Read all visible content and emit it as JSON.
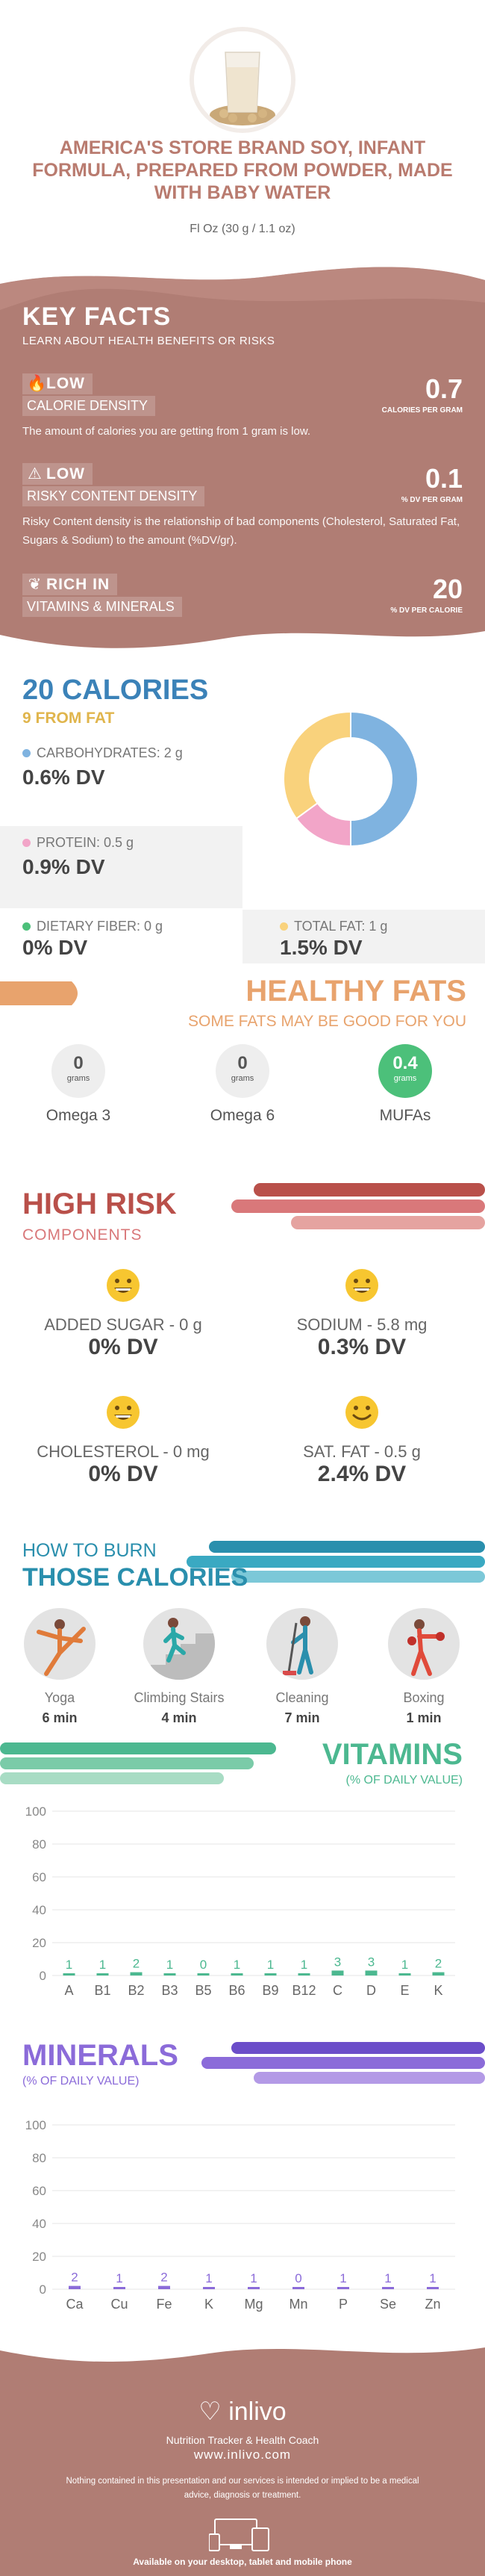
{
  "header": {
    "title": "AMERICA'S STORE BRAND SOY, INFANT FORMULA, PREPARED FROM POWDER, MADE WITH BABY WATER",
    "serving": "Fl Oz (30 g / 1.1 oz)"
  },
  "key_facts": {
    "title": "KEY FACTS",
    "subtitle": "LEARN ABOUT HEALTH BENEFITS OR RISKS",
    "items": [
      {
        "badge": "LOW",
        "name": "CALORIE DENSITY",
        "value": "0.7",
        "unit": "CALORIES PER GRAM",
        "desc": "The amount of calories you are getting from 1 gram is low.",
        "icon": "flame-icon"
      },
      {
        "badge": "LOW",
        "name": "RISKY CONTENT DENSITY",
        "value": "0.1",
        "unit": "% DV PER GRAM",
        "desc": "Risky Content density is the relationship of bad components (Cholesterol, Saturated Fat, Sugars & Sodium) to the amount (%DV/gr).",
        "icon": "warning-icon"
      },
      {
        "badge": "RICH  IN",
        "name": "VITAMINS & MINERALS",
        "value": "20",
        "unit": "% DV PER CALORIE",
        "desc": "",
        "icon": "leaf-icon"
      }
    ]
  },
  "calories": {
    "title": "20 CALORIES",
    "from_fat": "9 FROM FAT",
    "macros": [
      {
        "label": "CARBOHYDRATES: 2 g",
        "dv": "0.6% DV",
        "color": "#7fb3e0"
      },
      {
        "label": "PROTEIN: 0.5 g",
        "dv": "0.9% DV",
        "color": "#f2a5c8"
      },
      {
        "label": "DIETARY FIBER: 0 g",
        "dv": "0% DV",
        "color": "#4cc07a"
      },
      {
        "label": "TOTAL FAT: 1 g",
        "dv": "1.5% DV",
        "color": "#f9d27c"
      }
    ]
  },
  "chart_data": [
    {
      "type": "pie",
      "donut": true,
      "categories": [
        "Carbohydrates",
        "Protein",
        "Total Fat"
      ],
      "values": [
        50,
        15,
        35
      ],
      "colors": [
        "#7fb3e0",
        "#f2a5c8",
        "#f9d27c"
      ]
    },
    {
      "type": "bar",
      "title": "VITAMINS",
      "subtitle": "(% OF DAILY VALUE)",
      "categories": [
        "A",
        "B1",
        "B2",
        "B3",
        "B5",
        "B6",
        "B9",
        "B12",
        "C",
        "D",
        "E",
        "K"
      ],
      "values": [
        1,
        1,
        2,
        1,
        0,
        1,
        1,
        1,
        3,
        3,
        1,
        2
      ],
      "ylim": [
        0,
        100
      ],
      "yticks": [
        0,
        20,
        40,
        60,
        80,
        100
      ],
      "color": "#4cb890",
      "grid": true
    },
    {
      "type": "bar",
      "title": "MINERALS",
      "subtitle": "(% OF DAILY VALUE)",
      "categories": [
        "Ca",
        "Cu",
        "Fe",
        "K",
        "Mg",
        "Mn",
        "P",
        "Se",
        "Zn"
      ],
      "values": [
        2,
        1,
        2,
        1,
        1,
        0,
        1,
        1,
        1
      ],
      "ylim": [
        0,
        100
      ],
      "yticks": [
        0,
        20,
        40,
        60,
        80,
        100
      ],
      "color": "#8b6bd9",
      "grid": true
    }
  ],
  "fats": {
    "title": "HEALTHY FATS",
    "subtitle": "SOME FATS MAY BE GOOD FOR YOU",
    "items": [
      {
        "value": "0",
        "unit": "grams",
        "label": "Omega 3"
      },
      {
        "value": "0",
        "unit": "grams",
        "label": "Omega 6"
      },
      {
        "value": "0.4",
        "unit": "grams",
        "label": "MUFAs"
      }
    ]
  },
  "risk": {
    "title": "HIGH RISK",
    "subtitle": "COMPONENTS",
    "items": [
      {
        "label": "ADDED SUGAR - 0 g",
        "dv": "0% DV"
      },
      {
        "label": "SODIUM - 5.8 mg",
        "dv": "0.3% DV"
      },
      {
        "label": "CHOLESTEROL - 0 mg",
        "dv": "0% DV"
      },
      {
        "label": "SAT. FAT - 0.5 g",
        "dv": "2.4% DV"
      }
    ]
  },
  "burn": {
    "line1": "HOW TO BURN",
    "line2": "THOSE CALORIES",
    "activities": [
      {
        "name": "Yoga",
        "time": "6 min"
      },
      {
        "name": "Climbing Stairs",
        "time": "4 min"
      },
      {
        "name": "Cleaning",
        "time": "7 min"
      },
      {
        "name": "Boxing",
        "time": "1 min"
      }
    ]
  },
  "footer": {
    "logo": "inlivo",
    "tagline": "Nutrition Tracker & Health Coach",
    "url": "www.inlivo.com",
    "disclaimer": "Nothing contained in this presentation and our services is intended or implied to be a medical advice, diagnosis or treatment.",
    "available": "Available on your desktop, tablet and mobile phone"
  }
}
